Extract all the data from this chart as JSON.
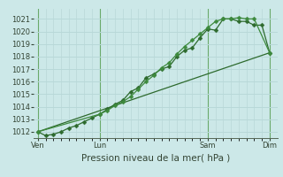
{
  "background_color": "#cce8e8",
  "grid_color": "#b8d8d8",
  "line_color_dark": "#2d6a2d",
  "line_color_med": "#3d8a3d",
  "xlabel": "Pression niveau de la mer( hPa )",
  "ylim": [
    1011.5,
    1021.8
  ],
  "yticks": [
    1012,
    1013,
    1014,
    1015,
    1016,
    1017,
    1018,
    1019,
    1020,
    1021
  ],
  "xtick_labels": [
    "Ven",
    "Lun",
    "Sam",
    "Dim"
  ],
  "xtick_positions": [
    0,
    8,
    22,
    30
  ],
  "vline_positions": [
    0,
    8,
    22,
    30
  ],
  "series1_x": [
    0,
    1,
    2,
    3,
    4,
    5,
    6,
    7,
    8,
    9,
    10,
    11,
    12,
    13,
    14,
    15,
    16,
    17,
    18,
    19,
    20,
    21,
    22,
    23,
    24,
    25,
    26,
    27,
    28,
    29,
    30
  ],
  "series1_y": [
    1012.0,
    1011.7,
    1011.8,
    1012.0,
    1012.3,
    1012.5,
    1012.8,
    1013.1,
    1013.4,
    1013.8,
    1014.2,
    1014.5,
    1015.2,
    1015.5,
    1016.3,
    1016.6,
    1017.0,
    1017.2,
    1018.0,
    1018.5,
    1018.7,
    1019.5,
    1020.2,
    1020.1,
    1021.0,
    1021.0,
    1020.8,
    1020.8,
    1020.5,
    1020.5,
    1018.3
  ],
  "series2_x": [
    0,
    8,
    9,
    10,
    11,
    12,
    13,
    14,
    15,
    16,
    17,
    18,
    19,
    20,
    21,
    22,
    23,
    24,
    25,
    26,
    27,
    28,
    30
  ],
  "series2_y": [
    1012.0,
    1013.4,
    1013.7,
    1014.1,
    1014.4,
    1014.8,
    1015.4,
    1016.0,
    1016.5,
    1017.1,
    1017.5,
    1018.2,
    1018.8,
    1019.3,
    1019.8,
    1020.3,
    1020.8,
    1021.0,
    1021.0,
    1021.1,
    1021.0,
    1021.0,
    1018.3
  ],
  "series3_x": [
    0,
    30
  ],
  "series3_y": [
    1012.0,
    1018.3
  ],
  "markersize": 2.5,
  "marker": "D",
  "tick_fontsize": 6,
  "label_fontsize": 7.5
}
